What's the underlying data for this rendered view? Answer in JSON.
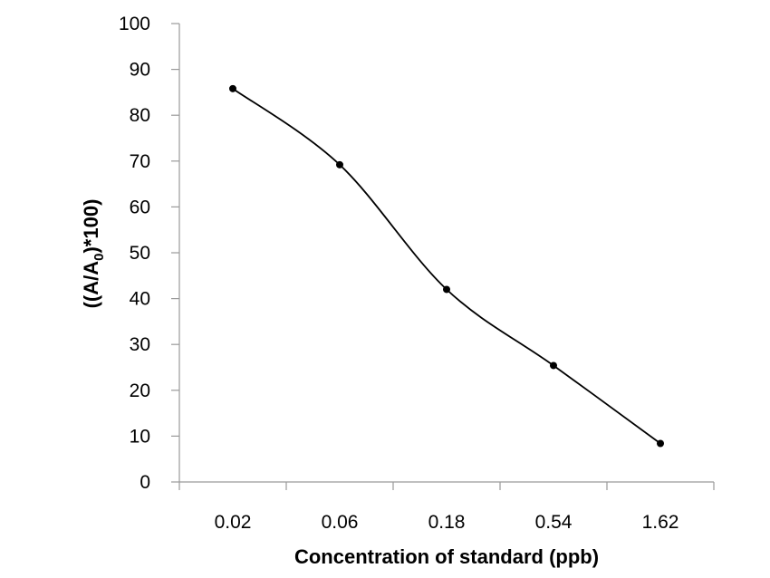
{
  "chart_data": {
    "type": "line",
    "title": "",
    "xlabel": "Concentration of standard (ppb)",
    "ylabel": {
      "prefix": "((A/A",
      "subscript": "0",
      "suffix": ")*100)"
    },
    "categories": [
      "0.02",
      "0.06",
      "0.18",
      "0.54",
      "1.62"
    ],
    "series": [
      {
        "values": [
          85.8,
          69.2,
          42.0,
          25.4,
          8.4
        ],
        "color": "#000000"
      }
    ],
    "ylim": [
      0,
      100
    ],
    "yticks": [
      "0",
      "10",
      "20",
      "30",
      "40",
      "50",
      "60",
      "70",
      "80",
      "90",
      "100"
    ],
    "smooth": true,
    "markers": "circle",
    "grid": false,
    "legend": "none"
  }
}
